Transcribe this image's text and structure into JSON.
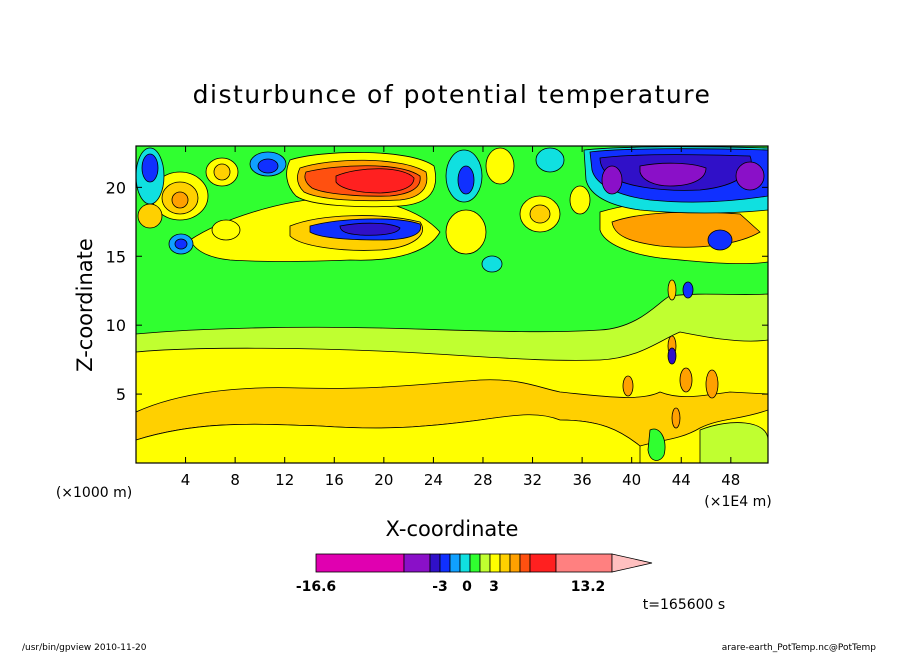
{
  "chart_data": {
    "type": "heatmap",
    "title": "disturbunce of potential temperature",
    "xlabel": "X-coordinate",
    "ylabel": "Z-coordinate",
    "x_unit_left": "(×1000 m)",
    "x_unit_right": "(×1E4 m)",
    "xlim": [
      0,
      51
    ],
    "ylim": [
      0,
      23
    ],
    "x_ticks": [
      4,
      8,
      12,
      16,
      20,
      24,
      28,
      32,
      36,
      40,
      44,
      48
    ],
    "y_ticks": [
      5,
      10,
      15,
      20
    ],
    "time_label": "t=165600 s",
    "colorbar": {
      "min_label": "-16.6",
      "max_label": "13.2",
      "center_labels": [
        "-3",
        "0",
        "3"
      ],
      "colors": [
        "#e000b0",
        "#8a10c8",
        "#3010c8",
        "#1030ff",
        "#10a0ff",
        "#10e0e0",
        "#30ff30",
        "#c0ff30",
        "#ffff00",
        "#ffd000",
        "#ffa000",
        "#ff5010",
        "#ff2020",
        "#ff8080",
        "#ffc0c0"
      ]
    },
    "footer_left": "/usr/bin/gpview   2010-11-20",
    "footer_right": "arare-earth_PotTemp.nc@PotTemp"
  }
}
